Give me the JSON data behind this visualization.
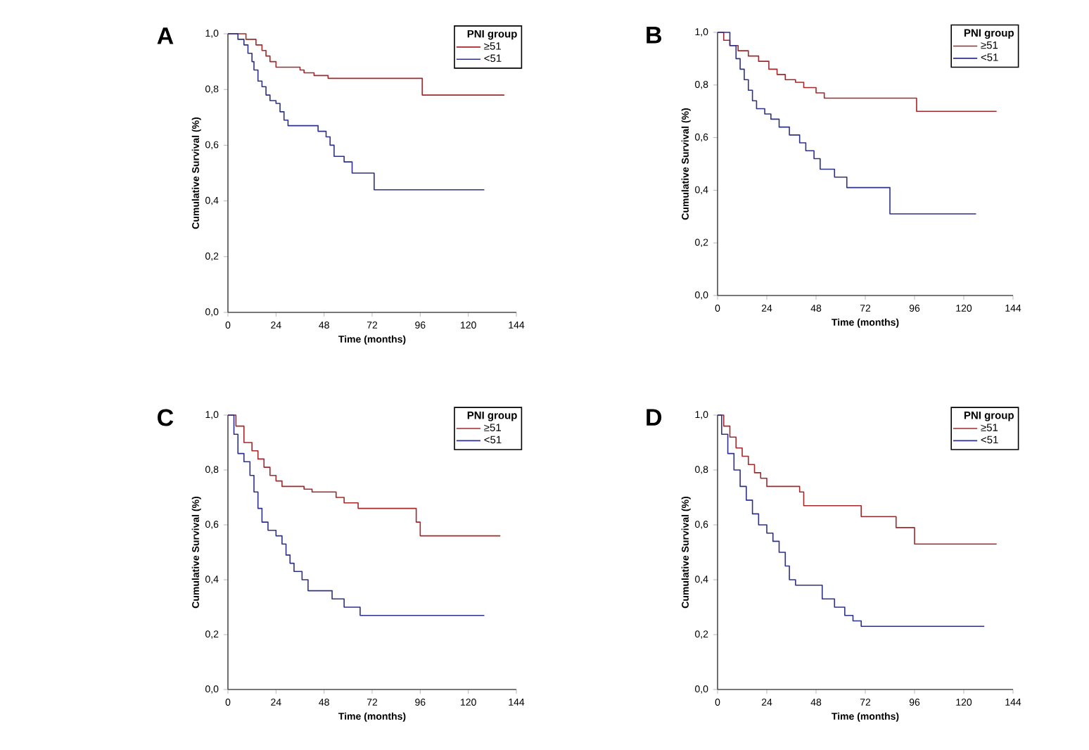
{
  "chart_data": [
    {
      "type": "step",
      "title": "A",
      "xlabel": "Time (months)",
      "ylabel": "Cumulative Survival (%)",
      "legend_title": "PNI group",
      "legend": "top right",
      "xlim": [
        0,
        144
      ],
      "ylim": [
        0,
        1.0
      ],
      "xticks": [
        0,
        24,
        48,
        72,
        96,
        120,
        144
      ],
      "yticks": [
        {
          "value": 0,
          "label": "0,0"
        },
        {
          "value": 0.2,
          "label": "0,2"
        },
        {
          "value": 0.4,
          "label": "0,4"
        },
        {
          "value": 0.6,
          "label": "0,6"
        },
        {
          "value": 0.8,
          "label": "0,8"
        },
        {
          "value": 1.0,
          "label": "1,0"
        }
      ],
      "series": [
        {
          "name": "≥51",
          "color": "#a3282b",
          "x": [
            0,
            9,
            14,
            17,
            19,
            21,
            24,
            36,
            38,
            43,
            50,
            97,
            138
          ],
          "values": [
            1.0,
            0.98,
            0.96,
            0.94,
            0.92,
            0.9,
            0.88,
            0.87,
            0.86,
            0.85,
            0.84,
            0.78,
            0.78
          ]
        },
        {
          "name": "<51",
          "color": "#2e3188",
          "x": [
            0,
            5,
            8,
            10,
            12,
            13,
            15,
            17,
            19,
            21,
            24,
            26,
            28,
            30,
            45,
            49,
            51,
            53,
            58,
            62,
            73,
            128
          ],
          "values": [
            1.0,
            0.98,
            0.96,
            0.93,
            0.9,
            0.87,
            0.83,
            0.81,
            0.78,
            0.76,
            0.75,
            0.72,
            0.69,
            0.67,
            0.65,
            0.63,
            0.6,
            0.56,
            0.54,
            0.5,
            0.44,
            0.44
          ]
        }
      ]
    },
    {
      "type": "step",
      "title": "B",
      "xlabel": "Time (months)",
      "ylabel": "Cumulative Survival (%)",
      "legend_title": "PNI group",
      "legend": "top right",
      "xlim": [
        0,
        144
      ],
      "ylim": [
        0,
        1.0
      ],
      "xticks": [
        0,
        24,
        48,
        72,
        96,
        120,
        144
      ],
      "yticks": [
        {
          "value": 0,
          "label": "0,0"
        },
        {
          "value": 0.2,
          "label": "0,2"
        },
        {
          "value": 0.4,
          "label": "0,4"
        },
        {
          "value": 0.6,
          "label": "0,6"
        },
        {
          "value": 0.8,
          "label": "0,8"
        },
        {
          "value": 1.0,
          "label": "1,0"
        }
      ],
      "series": [
        {
          "name": "≥51",
          "color": "#a3282b",
          "x": [
            0,
            3,
            6,
            10,
            15,
            20,
            25,
            29,
            33,
            38,
            42,
            48,
            52,
            97,
            136
          ],
          "values": [
            1.0,
            0.97,
            0.95,
            0.93,
            0.91,
            0.89,
            0.86,
            0.84,
            0.82,
            0.81,
            0.79,
            0.77,
            0.75,
            0.7,
            0.7
          ]
        },
        {
          "name": "<51",
          "color": "#2e3188",
          "x": [
            0,
            6,
            9,
            11,
            13,
            15,
            17,
            19,
            23,
            26,
            30,
            35,
            40,
            43,
            47,
            50,
            57,
            63,
            84,
            126
          ],
          "values": [
            1.0,
            0.95,
            0.9,
            0.86,
            0.82,
            0.78,
            0.74,
            0.71,
            0.69,
            0.67,
            0.64,
            0.61,
            0.58,
            0.55,
            0.52,
            0.48,
            0.45,
            0.41,
            0.31,
            0.31
          ]
        }
      ]
    },
    {
      "type": "step",
      "title": "C",
      "xlabel": "Time (months)",
      "ylabel": "Cumulative Survival (%)",
      "legend_title": "PNI group",
      "legend": "top right",
      "xlim": [
        0,
        144
      ],
      "ylim": [
        0,
        1.0
      ],
      "xticks": [
        0,
        24,
        48,
        72,
        96,
        120,
        144
      ],
      "yticks": [
        {
          "value": 0,
          "label": "0,0"
        },
        {
          "value": 0.2,
          "label": "0,2"
        },
        {
          "value": 0.4,
          "label": "0,4"
        },
        {
          "value": 0.6,
          "label": "0,6"
        },
        {
          "value": 0.8,
          "label": "0,8"
        },
        {
          "value": 1.0,
          "label": "1,0"
        }
      ],
      "series": [
        {
          "name": "≥51",
          "color": "#a3282b",
          "x": [
            0,
            4,
            8,
            12,
            15,
            18,
            21,
            24,
            27,
            38,
            42,
            54,
            58,
            65,
            94,
            96,
            136
          ],
          "values": [
            1.0,
            0.96,
            0.9,
            0.87,
            0.84,
            0.81,
            0.78,
            0.76,
            0.74,
            0.73,
            0.72,
            0.7,
            0.68,
            0.66,
            0.61,
            0.56,
            0.56
          ]
        },
        {
          "name": "<51",
          "color": "#2e3188",
          "x": [
            0,
            3,
            5,
            8,
            11,
            13,
            15,
            17,
            20,
            24,
            27,
            29,
            31,
            33,
            37,
            40,
            52,
            58,
            66,
            128
          ],
          "values": [
            1.0,
            0.93,
            0.86,
            0.83,
            0.78,
            0.72,
            0.66,
            0.61,
            0.58,
            0.56,
            0.53,
            0.49,
            0.46,
            0.43,
            0.4,
            0.36,
            0.33,
            0.3,
            0.27,
            0.27
          ]
        }
      ]
    },
    {
      "type": "step",
      "title": "D",
      "xlabel": "Time (months)",
      "ylabel": "Cumulative Survival (%)",
      "legend_title": "PNI group",
      "legend": "top right",
      "xlim": [
        0,
        144
      ],
      "ylim": [
        0,
        1.0
      ],
      "xticks": [
        0,
        24,
        48,
        72,
        96,
        120,
        144
      ],
      "yticks": [
        {
          "value": 0,
          "label": "0,0"
        },
        {
          "value": 0.2,
          "label": "0,2"
        },
        {
          "value": 0.4,
          "label": "0,4"
        },
        {
          "value": 0.6,
          "label": "0,6"
        },
        {
          "value": 0.8,
          "label": "0,8"
        },
        {
          "value": 1.0,
          "label": "1,0"
        }
      ],
      "series": [
        {
          "name": "≥51",
          "color": "#a3282b",
          "x": [
            0,
            3,
            6,
            9,
            12,
            15,
            18,
            21,
            24,
            40,
            42,
            70,
            87,
            96,
            136
          ],
          "values": [
            1.0,
            0.96,
            0.92,
            0.88,
            0.85,
            0.82,
            0.79,
            0.77,
            0.74,
            0.72,
            0.67,
            0.63,
            0.59,
            0.53,
            0.53
          ]
        },
        {
          "name": "<51",
          "color": "#2e3188",
          "x": [
            0,
            2,
            5,
            8,
            11,
            14,
            17,
            20,
            24,
            27,
            30,
            33,
            35,
            38,
            51,
            57,
            62,
            66,
            70,
            130
          ],
          "values": [
            1.0,
            0.93,
            0.86,
            0.8,
            0.74,
            0.69,
            0.64,
            0.6,
            0.57,
            0.54,
            0.5,
            0.45,
            0.4,
            0.38,
            0.33,
            0.3,
            0.27,
            0.25,
            0.23,
            0.23
          ]
        }
      ]
    }
  ]
}
